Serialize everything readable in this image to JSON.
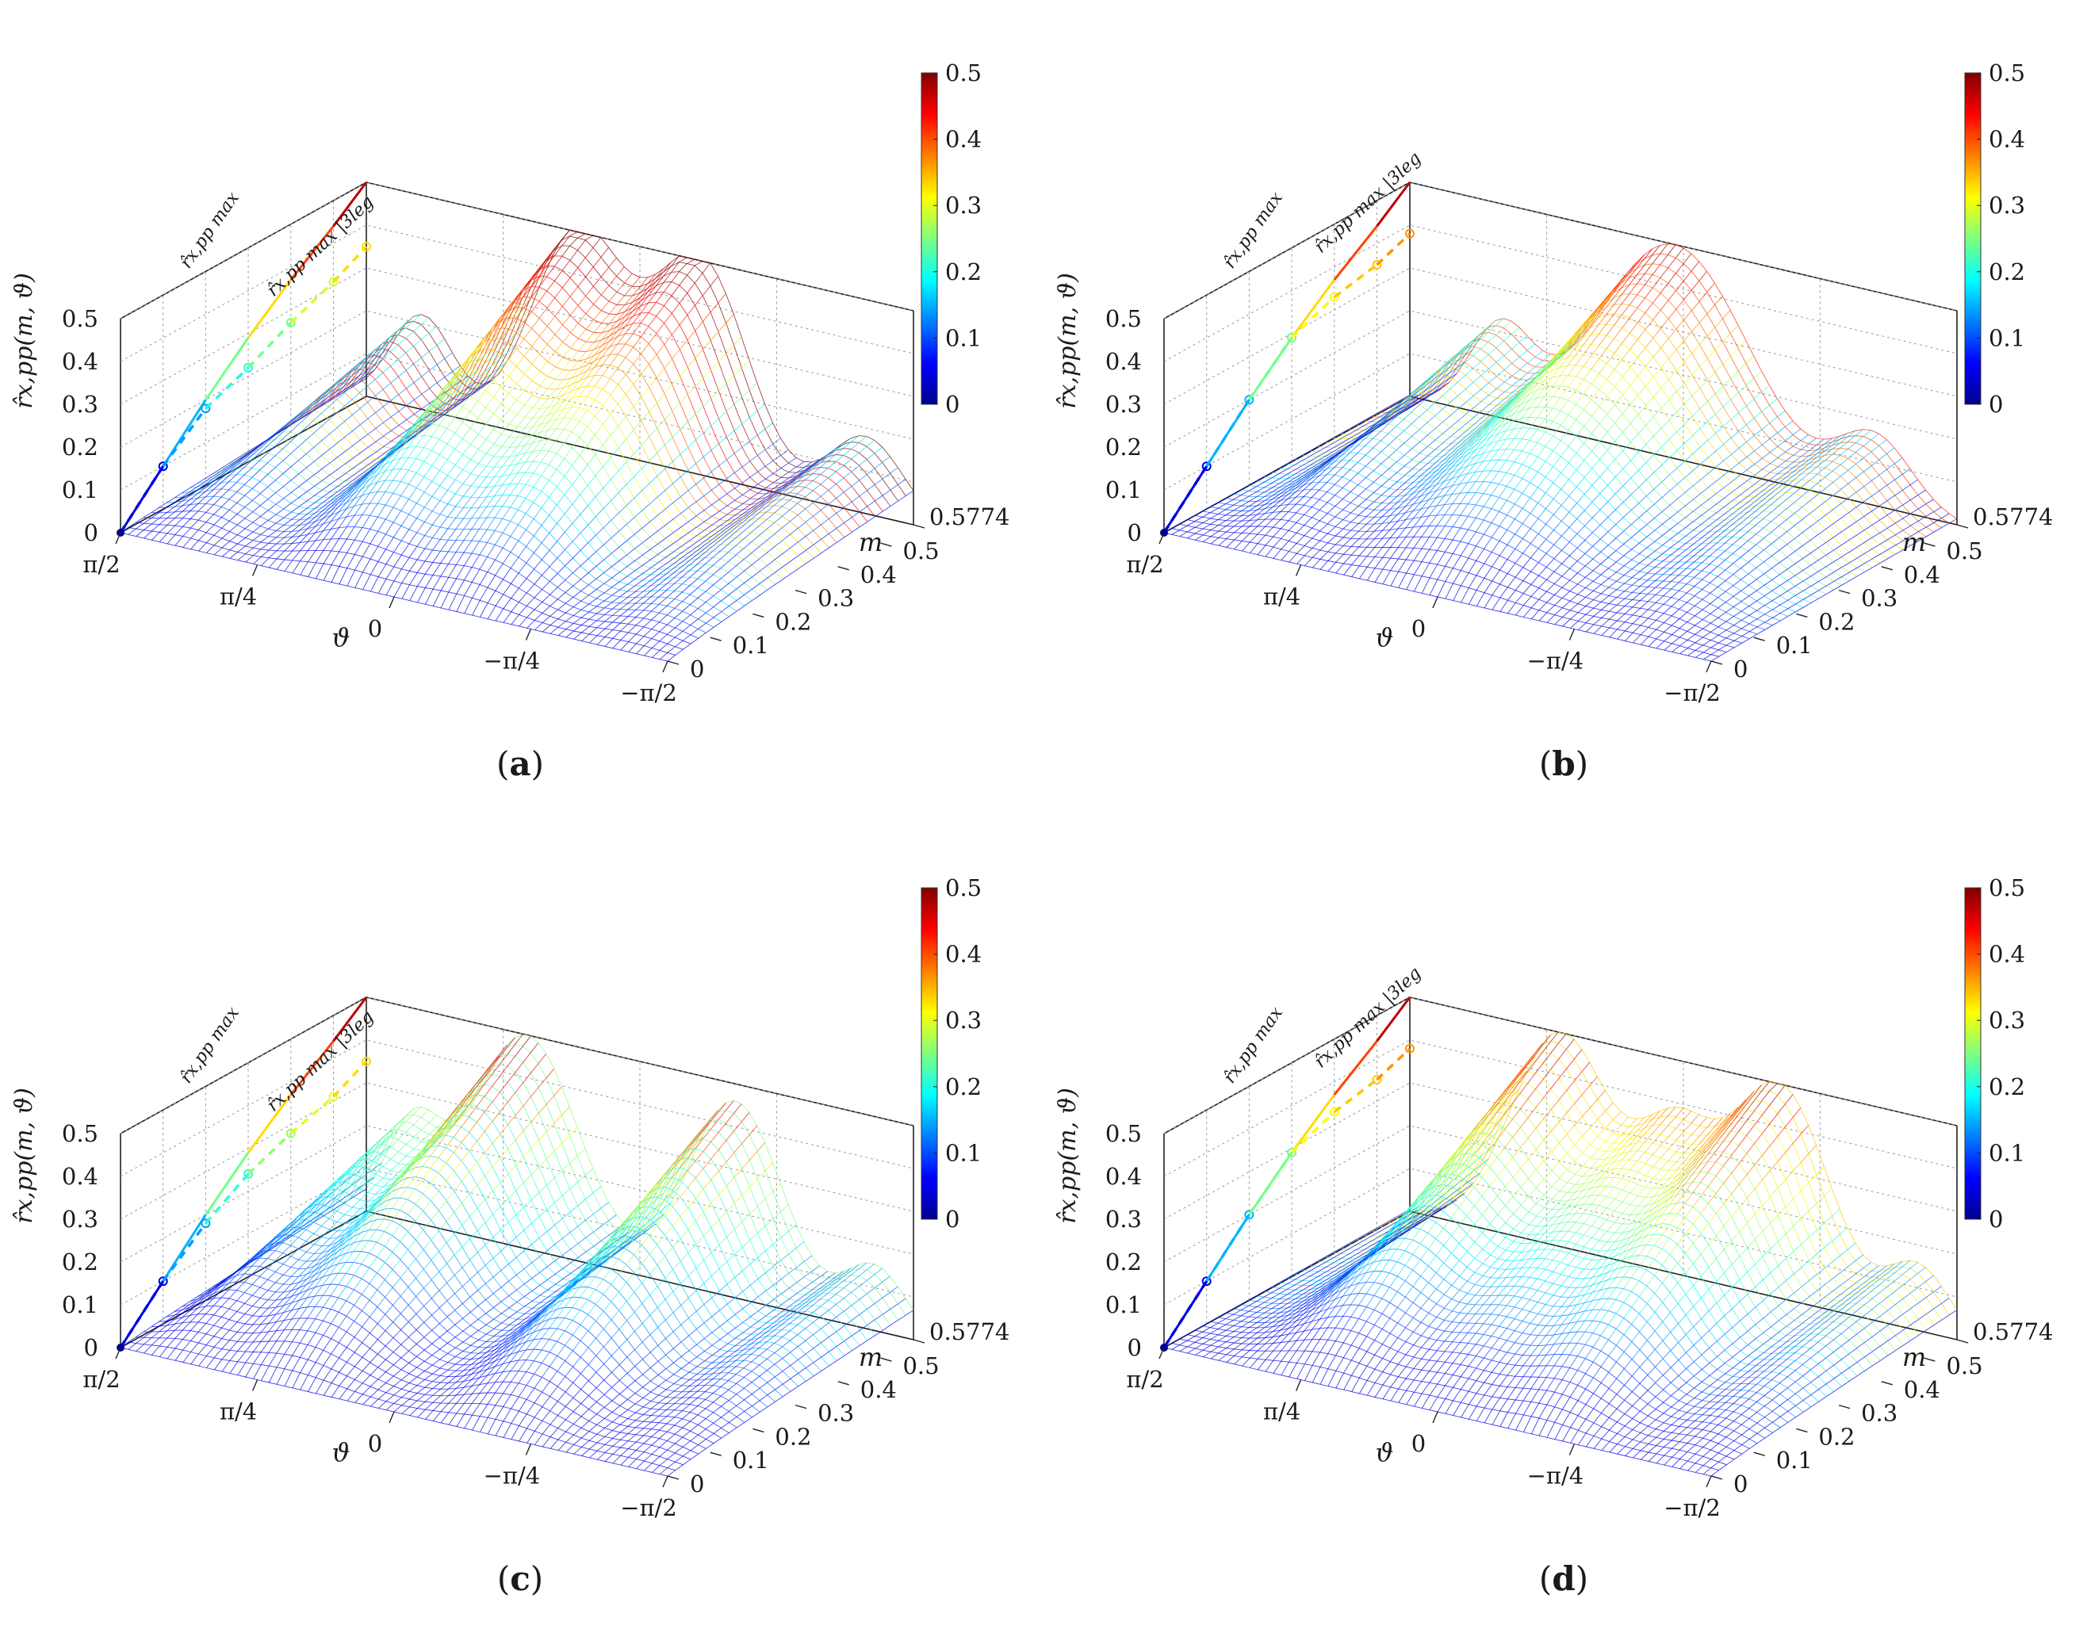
{
  "figure": {
    "panels": [
      "a",
      "b",
      "c",
      "d"
    ],
    "colormap": "jet",
    "colorbar": {
      "ticks": [
        "0",
        "0.1",
        "0.2",
        "0.3",
        "0.4",
        "0.5"
      ],
      "min": 0,
      "max": 0.5
    },
    "colors": {
      "jet_low": "#00008f",
      "jet_mid": "#7fff7f",
      "jet_high": "#800000",
      "grid": "#9a9a9a"
    }
  },
  "chart_data": [
    {
      "type": "surface-mesh-3d",
      "panel_label": "a",
      "zlabel": "r̂x,pp(m, ϑ)",
      "xlabel": "ϑ",
      "ylabel": "m",
      "z_ticks": [
        "0",
        "0.1",
        "0.2",
        "0.3",
        "0.4",
        "0.5"
      ],
      "theta_ticks": [
        "π/2",
        "π/4",
        "0",
        "−π/4",
        "−π/2"
      ],
      "m_ticks": [
        "0",
        "0.1",
        "0.2",
        "0.3",
        "0.4",
        "0.5",
        "0.5774"
      ],
      "zlim": [
        0,
        0.5
      ],
      "mlim": [
        0,
        0.5774
      ],
      "thetalim": [
        -1.5708,
        1.5708
      ],
      "curve_max_label": "r̂x,pp max",
      "curve_3leg_label": "r̂x,pp max |3leg",
      "curve_max": {
        "m": [
          0,
          0.1,
          0.2,
          0.3,
          0.4,
          0.5,
          0.5774
        ],
        "r": [
          0,
          0.1,
          0.2,
          0.29,
          0.37,
          0.44,
          0.5
        ]
      },
      "curve_3leg": {
        "m": [
          0,
          0.1,
          0.2,
          0.3,
          0.4,
          0.5,
          0.5774
        ],
        "r": [
          0,
          0.1,
          0.18,
          0.22,
          0.27,
          0.31,
          0.35
        ]
      },
      "peaks": [
        {
          "theta": 0.35,
          "height": 0.5,
          "width": 0.38
        },
        {
          "theta": -0.35,
          "height": 0.5,
          "width": 0.38
        },
        {
          "theta": 1.25,
          "height": 0.22,
          "width": 0.25
        },
        {
          "theta": -1.3,
          "height": 0.18,
          "width": 0.3
        }
      ]
    },
    {
      "type": "surface-mesh-3d",
      "panel_label": "b",
      "zlabel": "r̂x,pp(m, ϑ)",
      "xlabel": "ϑ",
      "ylabel": "m",
      "z_ticks": [
        "0",
        "0.1",
        "0.2",
        "0.3",
        "0.4",
        "0.5"
      ],
      "theta_ticks": [
        "π/2",
        "π/4",
        "0",
        "−π/4",
        "−π/2"
      ],
      "m_ticks": [
        "0",
        "0.1",
        "0.2",
        "0.3",
        "0.4",
        "0.5",
        "0.5774"
      ],
      "zlim": [
        0,
        0.5
      ],
      "mlim": [
        0,
        0.5774
      ],
      "thetalim": [
        -1.5708,
        1.5708
      ],
      "curve_max_label": "r̂x,pp max",
      "curve_3leg_label": "r̂x,pp max |3leg",
      "curve_max": {
        "m": [
          0,
          0.1,
          0.2,
          0.3,
          0.4,
          0.5,
          0.5774
        ],
        "r": [
          0,
          0.1,
          0.2,
          0.29,
          0.37,
          0.44,
          0.5
        ]
      },
      "curve_3leg": {
        "m": [
          0,
          0.1,
          0.2,
          0.3,
          0.4,
          0.5,
          0.5774
        ],
        "r": [
          0,
          0.1,
          0.2,
          0.29,
          0.33,
          0.35,
          0.38
        ]
      },
      "peaks": [
        {
          "theta": 0.05,
          "height": 0.5,
          "width": 0.6
        },
        {
          "theta": 1.05,
          "height": 0.2,
          "width": 0.25
        },
        {
          "theta": -1.1,
          "height": 0.16,
          "width": 0.3
        }
      ]
    },
    {
      "type": "surface-mesh-3d",
      "panel_label": "c",
      "zlabel": "r̂x,pp(m, ϑ)",
      "xlabel": "ϑ",
      "ylabel": "m",
      "z_ticks": [
        "0",
        "0.1",
        "0.2",
        "0.3",
        "0.4",
        "0.5"
      ],
      "theta_ticks": [
        "π/2",
        "π/4",
        "0",
        "−π/4",
        "−π/2"
      ],
      "m_ticks": [
        "0",
        "0.1",
        "0.2",
        "0.3",
        "0.4",
        "0.5",
        "0.5774"
      ],
      "zlim": [
        0,
        0.5
      ],
      "mlim": [
        0,
        0.5774
      ],
      "thetalim": [
        -1.5708,
        1.5708
      ],
      "curve_max_label": "r̂x,pp max",
      "curve_3leg_label": "r̂x,pp max |3leg",
      "curve_max": {
        "m": [
          0,
          0.1,
          0.2,
          0.3,
          0.4,
          0.5,
          0.5774
        ],
        "r": [
          0,
          0.1,
          0.2,
          0.29,
          0.37,
          0.44,
          0.5
        ]
      },
      "curve_3leg": {
        "m": [
          0,
          0.1,
          0.2,
          0.3,
          0.4,
          0.5,
          0.5774
        ],
        "r": [
          0,
          0.1,
          0.18,
          0.24,
          0.28,
          0.31,
          0.35
        ]
      },
      "peaks": [
        {
          "theta": 0.65,
          "height": 0.5,
          "width": 0.42
        },
        {
          "theta": -0.55,
          "height": 0.46,
          "width": 0.38
        },
        {
          "theta": 1.3,
          "height": 0.22,
          "width": 0.22
        },
        {
          "theta": -1.35,
          "height": 0.15,
          "width": 0.25
        }
      ]
    },
    {
      "type": "surface-mesh-3d",
      "panel_label": "d",
      "zlabel": "r̂x,pp(m, ϑ)",
      "xlabel": "ϑ",
      "ylabel": "m",
      "z_ticks": [
        "0",
        "0.1",
        "0.2",
        "0.3",
        "0.4",
        "0.5"
      ],
      "theta_ticks": [
        "π/2",
        "π/4",
        "0",
        "−π/4",
        "−π/2"
      ],
      "m_ticks": [
        "0",
        "0.1",
        "0.2",
        "0.3",
        "0.4",
        "0.5",
        "0.5774"
      ],
      "zlim": [
        0,
        0.5
      ],
      "mlim": [
        0,
        0.5774
      ],
      "thetalim": [
        -1.5708,
        1.5708
      ],
      "curve_max_label": "r̂x,pp max",
      "curve_3leg_label": "r̂x,pp max |3leg",
      "curve_max": {
        "m": [
          0,
          0.1,
          0.2,
          0.3,
          0.4,
          0.5,
          0.5774
        ],
        "r": [
          0,
          0.1,
          0.2,
          0.29,
          0.37,
          0.44,
          0.5
        ]
      },
      "curve_3leg": {
        "m": [
          0,
          0.1,
          0.2,
          0.3,
          0.4,
          0.5,
          0.5774
        ],
        "r": [
          0,
          0.1,
          0.2,
          0.29,
          0.33,
          0.35,
          0.38
        ]
      },
      "peaks": [
        {
          "theta": 0.7,
          "height": 0.5,
          "width": 0.4
        },
        {
          "theta": -0.55,
          "height": 0.5,
          "width": 0.4
        },
        {
          "theta": 0.05,
          "height": 0.3,
          "width": 0.3
        },
        {
          "theta": -1.35,
          "height": 0.15,
          "width": 0.25
        }
      ]
    }
  ]
}
